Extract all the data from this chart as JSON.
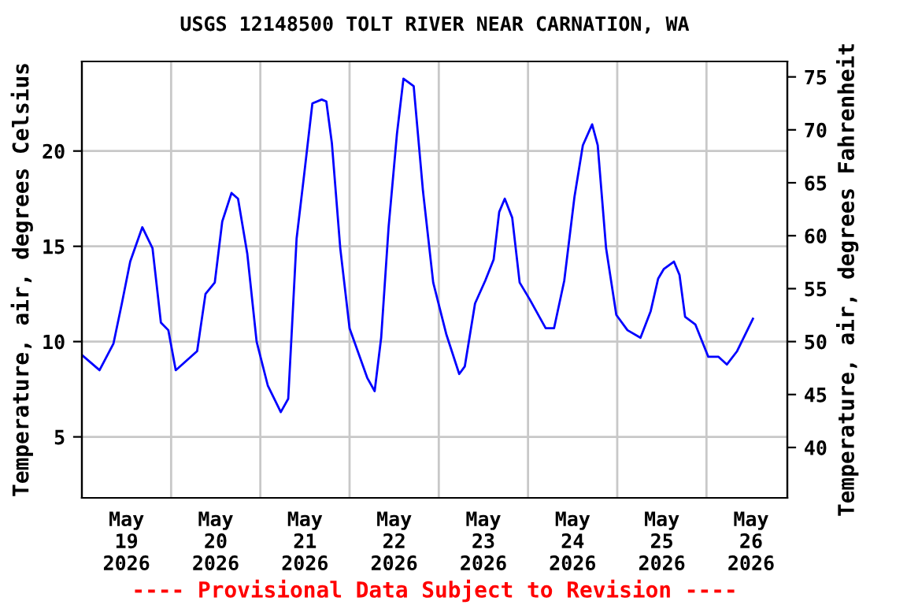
{
  "chart_data": {
    "type": "line",
    "title": "USGS 12148500 TOLT RIVER NEAR CARNATION, WA",
    "ylabel": "Temperature, air, degrees Celsius",
    "y2label": "Temperature, air, degrees Fahrenheit",
    "annotations": [
      "---- Provisional Data Subject to Revision ----"
    ],
    "x": [
      "2026-05-19T00:00",
      "2026-05-19T04:45",
      "2026-05-19T08:30",
      "2026-05-19T10:45",
      "2026-05-19T13:00",
      "2026-05-19T16:15",
      "2026-05-19T19:00",
      "2026-05-19T21:15",
      "2026-05-19T23:15",
      "2026-05-20T01:15",
      "2026-05-20T07:00",
      "2026-05-20T09:15",
      "2026-05-20T11:45",
      "2026-05-20T13:45",
      "2026-05-20T16:15",
      "2026-05-20T18:00",
      "2026-05-20T20:30",
      "2026-05-20T23:00",
      "2026-05-21T02:00",
      "2026-05-21T05:30",
      "2026-05-21T07:30",
      "2026-05-21T08:30",
      "2026-05-21T09:45",
      "2026-05-21T11:45",
      "2026-05-21T14:00",
      "2026-05-21T16:30",
      "2026-05-21T17:45",
      "2026-05-21T19:15",
      "2026-05-21T21:30",
      "2026-05-22T00:00",
      "2026-05-22T04:45",
      "2026-05-22T06:45",
      "2026-05-22T08:30",
      "2026-05-22T10:30",
      "2026-05-22T12:45",
      "2026-05-22T14:30",
      "2026-05-22T17:15",
      "2026-05-22T19:45",
      "2026-05-22T22:30",
      "2026-05-23T02:00",
      "2026-05-23T05:30",
      "2026-05-23T07:00",
      "2026-05-23T09:45",
      "2026-05-23T12:30",
      "2026-05-23T14:45",
      "2026-05-23T16:15",
      "2026-05-23T17:45",
      "2026-05-23T19:45",
      "2026-05-23T21:45",
      "2026-05-24T00:30",
      "2026-05-24T04:45",
      "2026-05-24T07:00",
      "2026-05-24T09:45",
      "2026-05-24T12:30",
      "2026-05-24T14:45",
      "2026-05-24T17:15",
      "2026-05-24T18:45",
      "2026-05-24T21:00",
      "2026-05-24T23:45",
      "2026-05-25T02:45",
      "2026-05-25T06:15",
      "2026-05-25T09:00",
      "2026-05-25T11:00",
      "2026-05-25T12:30",
      "2026-05-25T15:15",
      "2026-05-25T16:45",
      "2026-05-25T18:15",
      "2026-05-25T21:00",
      "2026-05-26T00:30",
      "2026-05-26T03:15",
      "2026-05-26T05:30",
      "2026-05-26T08:15",
      "2026-05-26T12:30"
    ],
    "series": [
      {
        "color": "#0000ff",
        "values": [
          9.3,
          8.5,
          9.9,
          12.0,
          14.2,
          16.0,
          14.9,
          11.0,
          10.6,
          8.5,
          9.5,
          12.5,
          13.1,
          16.3,
          17.8,
          17.5,
          14.6,
          10.0,
          7.7,
          6.3,
          7.0,
          10.7,
          15.4,
          18.7,
          22.5,
          22.7,
          22.6,
          20.4,
          14.9,
          10.7,
          8.1,
          7.4,
          10.2,
          16.0,
          20.9,
          23.8,
          23.4,
          17.9,
          13.1,
          10.4,
          8.3,
          8.7,
          12.0,
          13.2,
          14.3,
          16.8,
          17.5,
          16.5,
          13.1,
          12.2,
          10.7,
          10.7,
          13.2,
          17.6,
          20.3,
          21.4,
          20.3,
          14.9,
          11.4,
          10.6,
          10.2,
          11.6,
          13.3,
          13.8,
          14.2,
          13.5,
          11.3,
          10.9,
          9.2,
          9.2,
          8.8,
          9.5,
          11.2
        ]
      }
    ],
    "xlim": [
      "2026-05-19T00:00",
      "2026-05-26T21:45"
    ],
    "xticks": [
      {
        "value": "2026-05-19T12:00",
        "label": "May\n19\n2026"
      },
      {
        "value": "2026-05-20T12:00",
        "label": "May\n20\n2026"
      },
      {
        "value": "2026-05-21T12:00",
        "label": "May\n21\n2026"
      },
      {
        "value": "2026-05-22T12:00",
        "label": "May\n22\n2026"
      },
      {
        "value": "2026-05-23T12:00",
        "label": "May\n23\n2026"
      },
      {
        "value": "2026-05-24T12:00",
        "label": "May\n24\n2026"
      },
      {
        "value": "2026-05-25T12:00",
        "label": "May\n25\n2026"
      },
      {
        "value": "2026-05-26T12:00",
        "label": "May\n26\n2026"
      },
      {
        "value": "2026-05-20T00:00",
        "label": null
      },
      {
        "value": "2026-05-21T00:00",
        "label": null
      },
      {
        "value": "2026-05-22T00:00",
        "label": null
      },
      {
        "value": "2026-05-23T00:00",
        "label": null
      },
      {
        "value": "2026-05-24T00:00",
        "label": null
      },
      {
        "value": "2026-05-25T00:00",
        "label": null
      },
      {
        "value": "2026-05-26T00:00",
        "label": null
      }
    ],
    "ylim": [
      1.8,
      24.7
    ],
    "yticks": [
      5,
      10,
      15,
      20
    ],
    "y2lim": [
      35.24,
      76.46
    ],
    "y2ticks": [
      40,
      45,
      50,
      55,
      60,
      65,
      70,
      75
    ],
    "grid": true,
    "legend": false,
    "marker": "none",
    "line_style": "solid"
  }
}
